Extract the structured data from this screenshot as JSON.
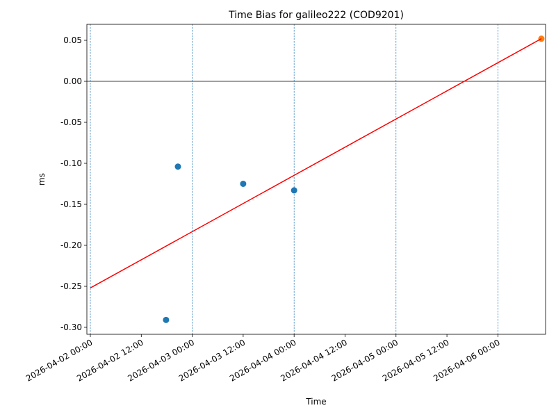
{
  "chart_data": {
    "type": "scatter",
    "title": "Time Bias for galileo222 (COD9201)",
    "xlabel": "Time",
    "ylabel": "ms",
    "xlim": [
      "2026-04-01 23:11",
      "2026-04-06 11:14"
    ],
    "ylim": [
      -0.3085,
      0.0695
    ],
    "xticks": [
      "2026-04-02 00:00",
      "2026-04-02 12:00",
      "2026-04-03 00:00",
      "2026-04-03 12:00",
      "2026-04-04 00:00",
      "2026-04-04 12:00",
      "2026-04-05 00:00",
      "2026-04-05 12:00",
      "2026-04-06 00:00"
    ],
    "yticks": [
      0.05,
      {
        "value": 0,
        "label": "0.00"
      },
      -0.05,
      {
        "value": -0.1,
        "label": "-0.10"
      },
      -0.15,
      {
        "value": -0.2,
        "label": "-0.20"
      },
      -0.25,
      {
        "value": -0.3,
        "label": "-0.30"
      }
    ],
    "vlines": [
      "2026-04-02 00:00",
      "2026-04-03 00:00",
      "2026-04-04 00:00",
      "2026-04-05 00:00",
      "2026-04-06 00:00"
    ],
    "vline_color": "#1f77b4",
    "hline": 0,
    "series": [
      {
        "type": "scatter",
        "color": "#1f77b4",
        "x": [
          "2026-04-02 17:50",
          "2026-04-02 20:38",
          "2026-04-03 12:00",
          "2026-04-04 00:00"
        ],
        "values": [
          -0.291,
          -0.104,
          -0.125,
          -0.133
        ]
      },
      {
        "type": "scatter",
        "color": "#ff7f0e",
        "x": [
          "2026-04-06 10:15"
        ],
        "values": [
          0.052
        ]
      },
      {
        "type": "line",
        "color": "#ff0000",
        "x": [
          "2026-04-02 00:00",
          "2026-04-06 10:15"
        ],
        "values": [
          -0.252,
          0.052
        ]
      }
    ]
  }
}
